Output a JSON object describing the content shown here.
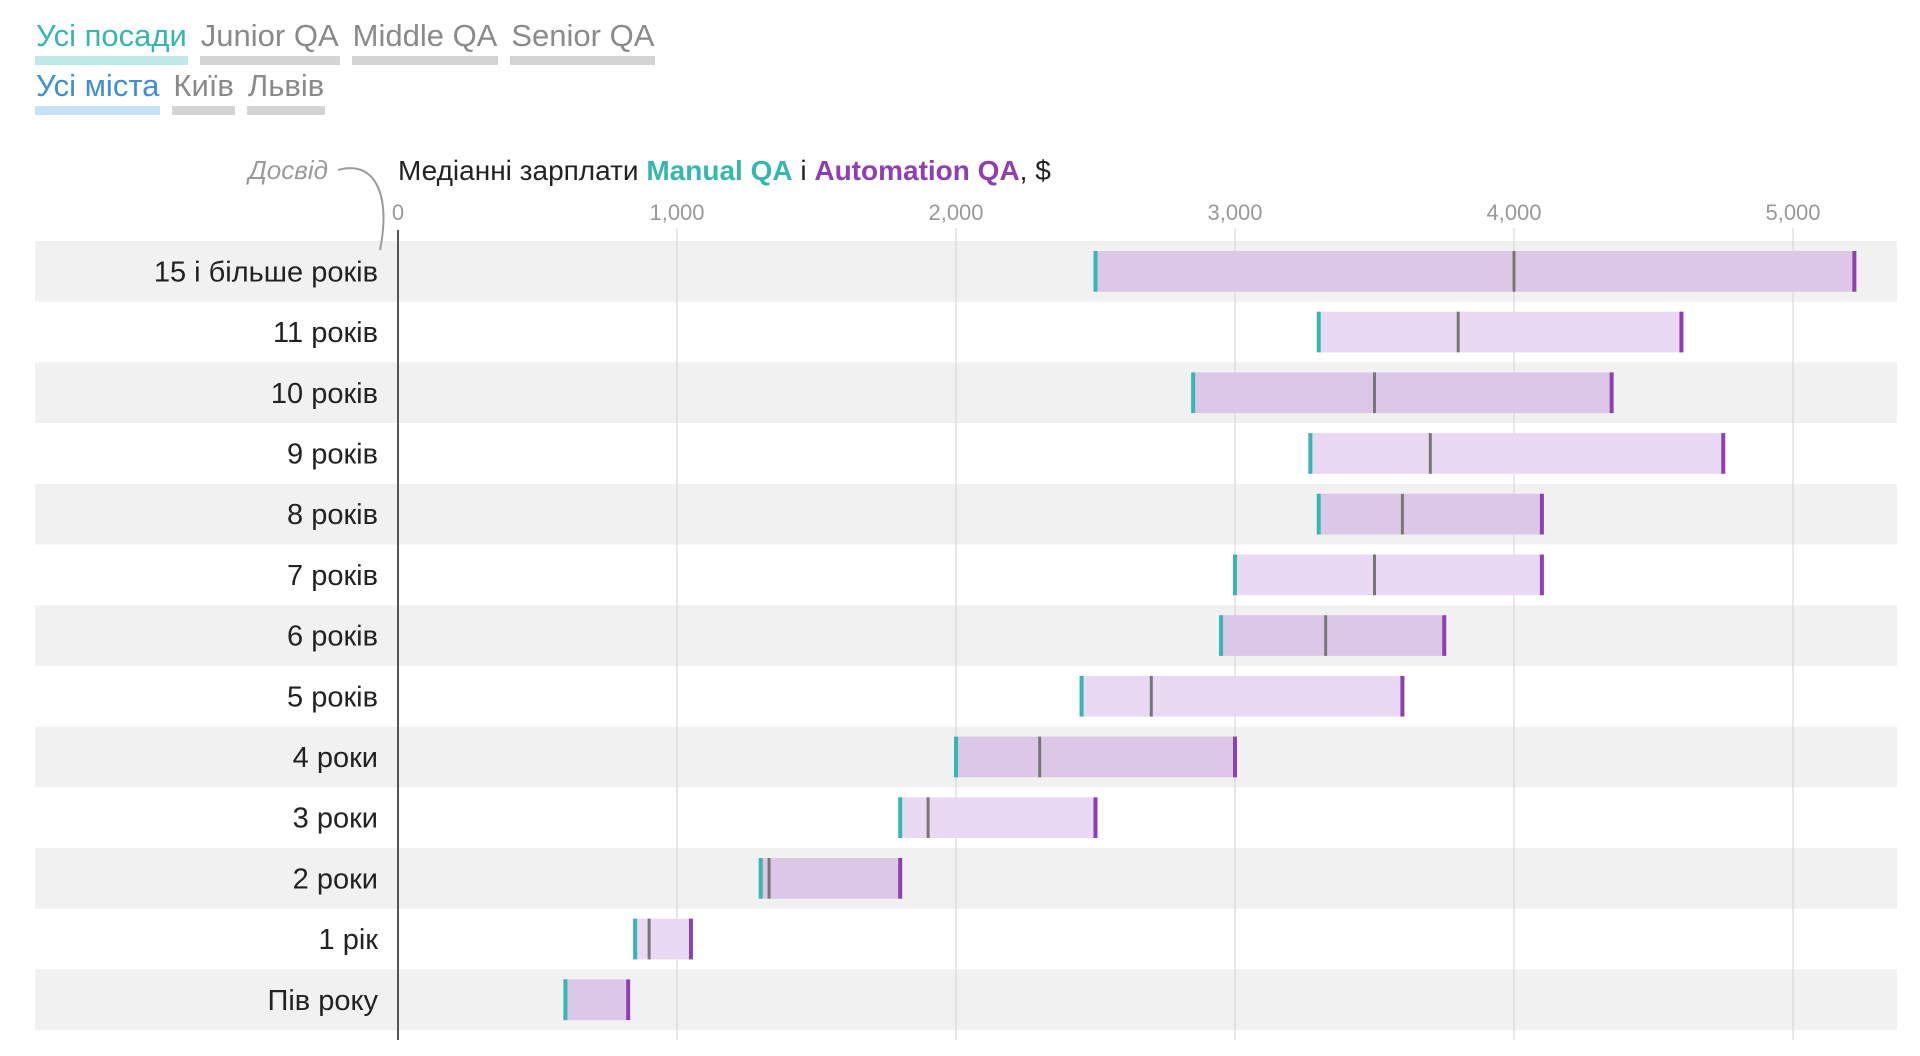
{
  "filters": {
    "positions": [
      {
        "label": "Усі посади",
        "active": true
      },
      {
        "label": "Junior QA",
        "active": false
      },
      {
        "label": "Middle QA",
        "active": false
      },
      {
        "label": "Senior QA",
        "active": false
      }
    ],
    "cities": [
      {
        "label": "Усі міста",
        "active": true
      },
      {
        "label": "Київ",
        "active": false
      },
      {
        "label": "Львів",
        "active": false
      }
    ]
  },
  "colors": {
    "manual": "#37b6b0",
    "automation": "#8e3fb0",
    "median": "#777777",
    "bar_dark": "#dcc8e6",
    "bar_light": "#ead9f3",
    "row_band": "#f1f1f1"
  },
  "chart_data": {
    "type": "bar",
    "title_prefix": "Медіанні зарплати ",
    "title_manual": "Manual QA",
    "title_and": " і ",
    "title_automation": "Automation QA",
    "title_suffix": ", $",
    "y_axis_label": "Досвід",
    "xlim": [
      0,
      5200
    ],
    "ticks": [
      {
        "value": 0,
        "label": "0"
      },
      {
        "value": 1000,
        "label": "1,000"
      },
      {
        "value": 2000,
        "label": "2,000"
      },
      {
        "value": 3000,
        "label": "3,000"
      },
      {
        "value": 4000,
        "label": "4,000"
      },
      {
        "value": 5000,
        "label": "5,000"
      }
    ],
    "categories": [
      "15 і більше років",
      "11 років",
      "10 років",
      "9 років",
      "8 років",
      "7 років",
      "6 років",
      "5 років",
      "4 роки",
      "3 роки",
      "2 роки",
      "1 рік",
      "Пів року"
    ],
    "series": [
      {
        "name": "Manual QA",
        "values": [
          2500,
          3300,
          2850,
          3270,
          3300,
          3000,
          2950,
          2450,
          2000,
          1800,
          1300,
          850,
          600
        ]
      },
      {
        "name": "Median",
        "values": [
          4000,
          3800,
          3500,
          3700,
          3600,
          3500,
          3325,
          2700,
          2300,
          1900,
          1330,
          900,
          600
        ]
      },
      {
        "name": "Automation QA",
        "values": [
          5220,
          4600,
          4350,
          4750,
          4100,
          4100,
          3750,
          3600,
          3000,
          2500,
          1800,
          1050,
          825
        ]
      }
    ]
  }
}
